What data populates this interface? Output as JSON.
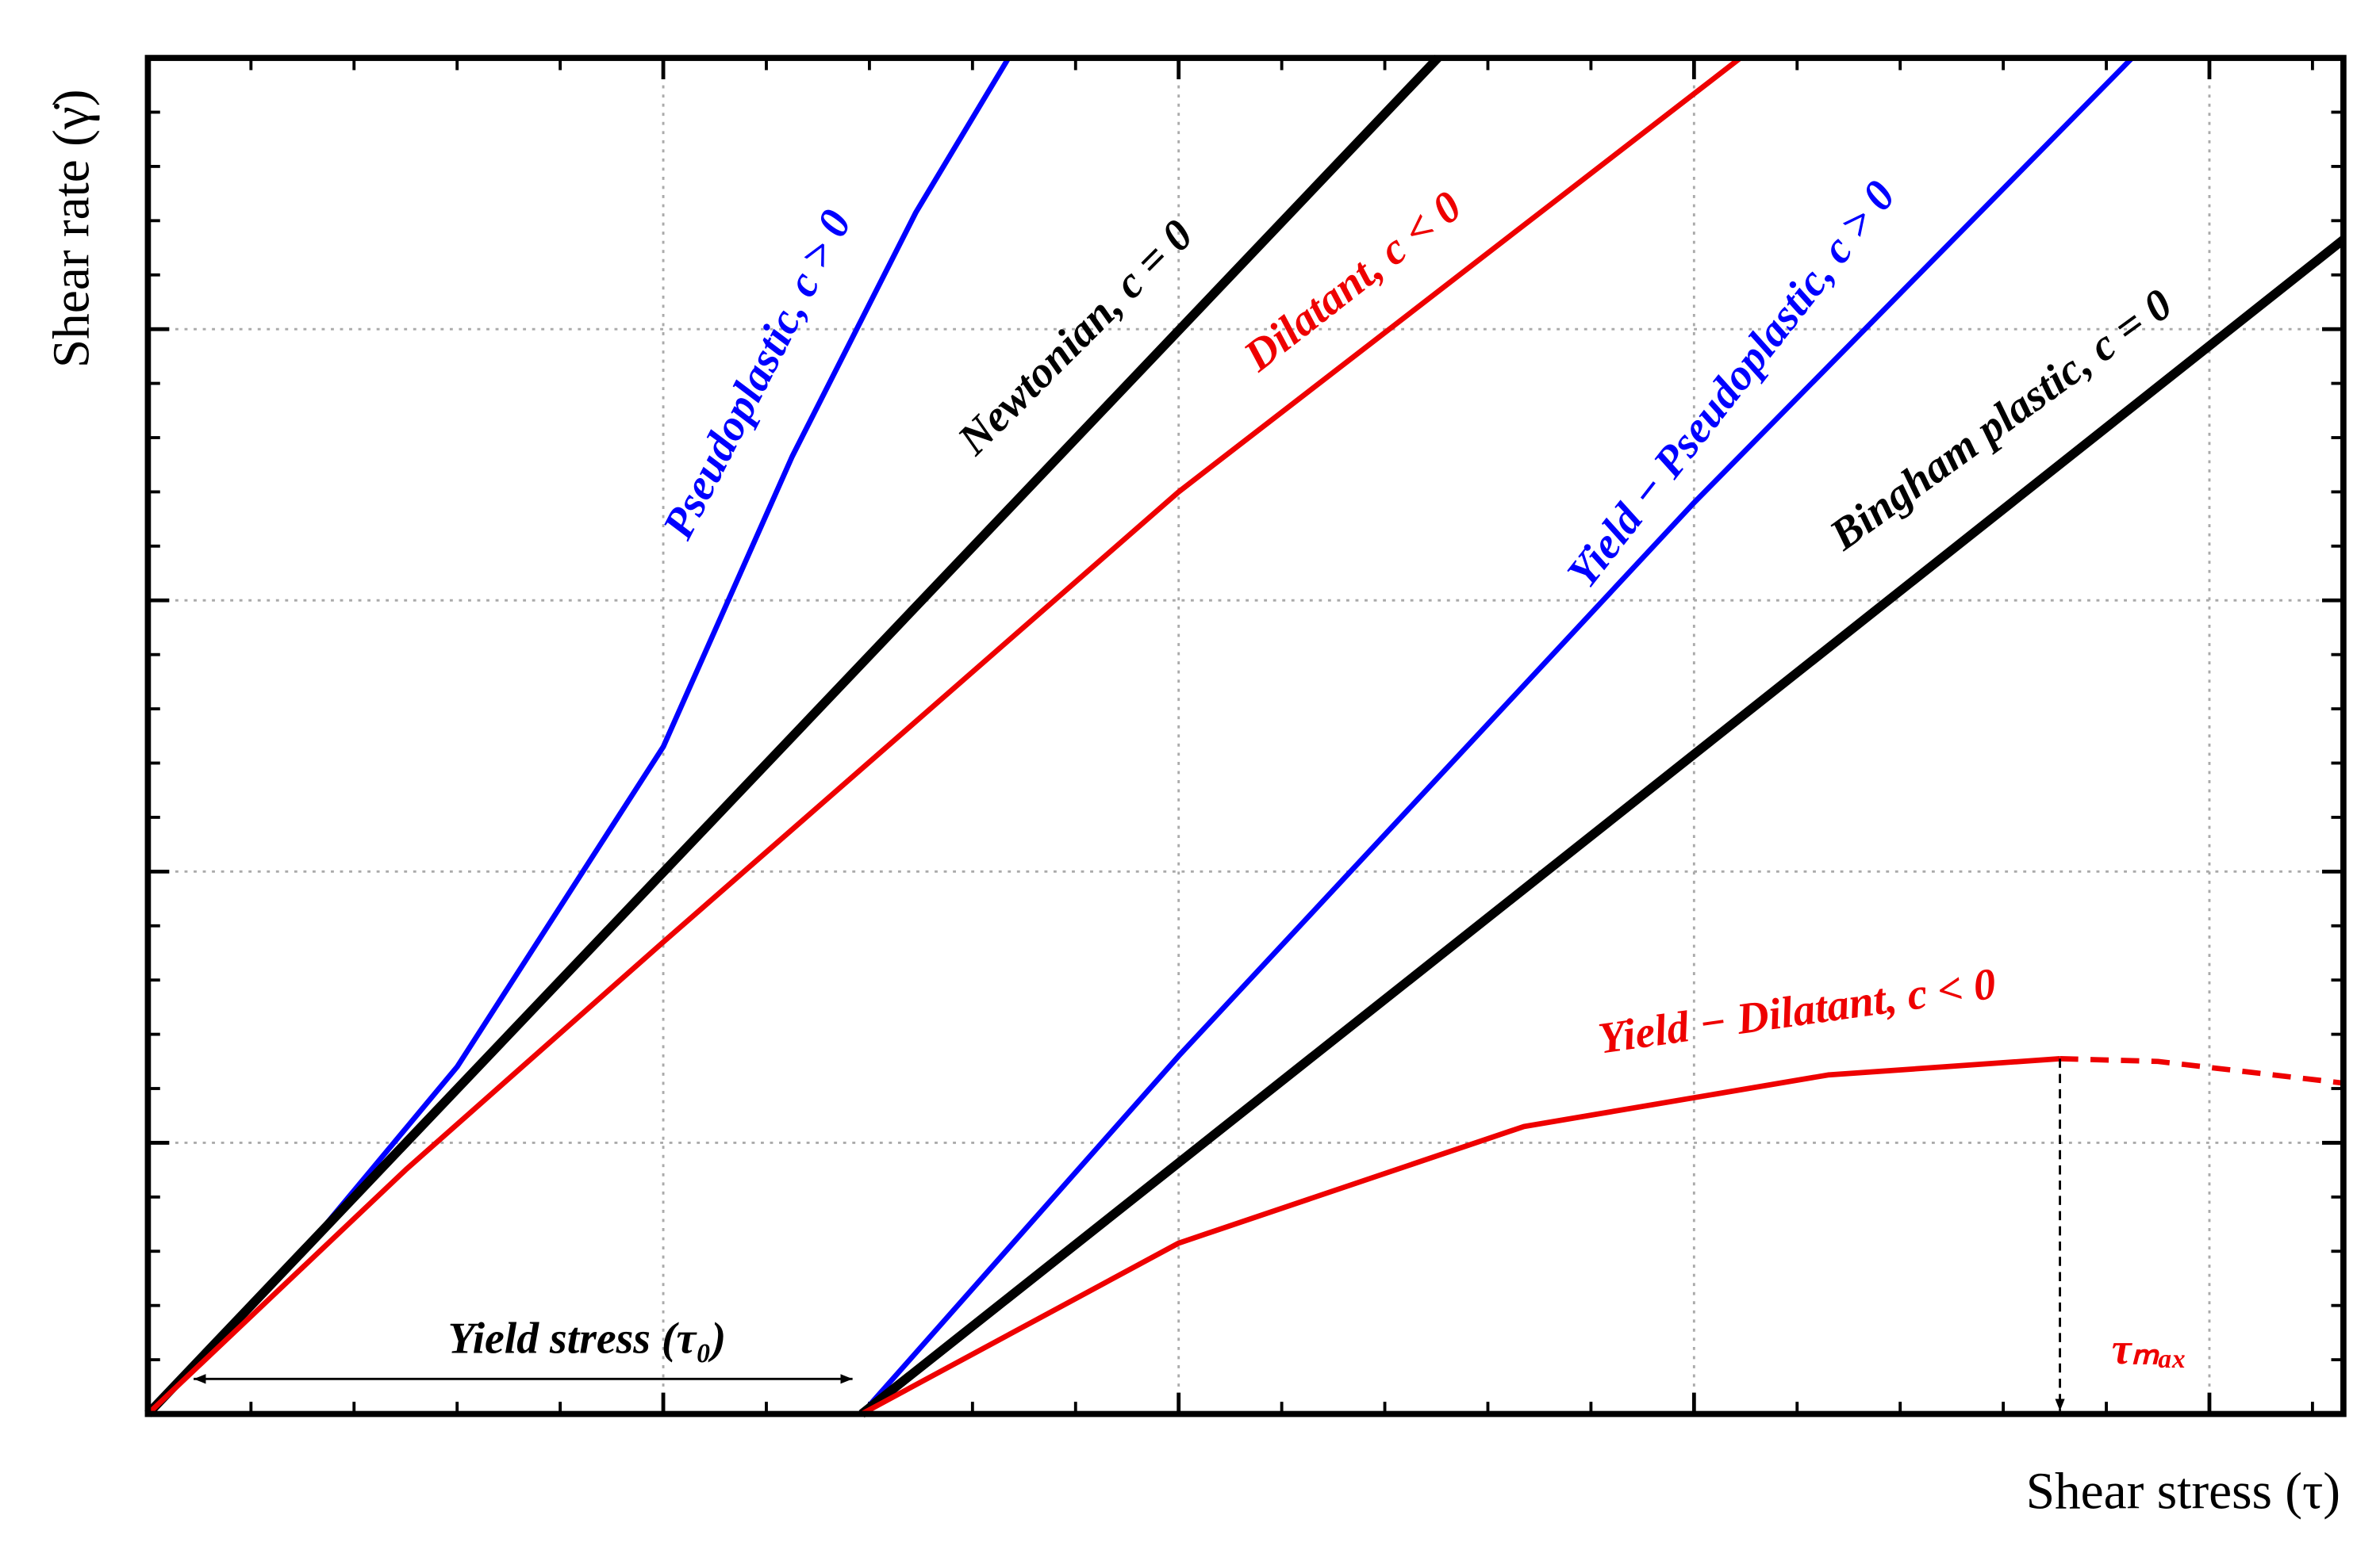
{
  "chart_data": {
    "type": "line",
    "x_label": "Shear stress (τ)",
    "y_label": "Shear rate (γ̇)",
    "xlim": [
      0,
      4.26
    ],
    "ylim": [
      0,
      5
    ],
    "xticks": [
      1,
      2,
      3,
      4
    ],
    "yticks": [
      1,
      2,
      3,
      4
    ],
    "grid": true,
    "series": [
      {
        "name": "Pseudoplastic, c > 0",
        "color": "#0000ff",
        "x": [
          0,
          0.305,
          0.6,
          1.0,
          1.25,
          1.49,
          1.67
        ],
        "values": [
          0,
          0.607,
          1.28,
          2.46,
          3.53,
          4.43,
          5.0
        ]
      },
      {
        "name": "Newtonian, c = 0",
        "color": "#000000",
        "x": [
          0,
          2.503
        ],
        "values": [
          0,
          5.0
        ]
      },
      {
        "name": "Dilatant, c < 0",
        "color": "#ee0000",
        "x": [
          0,
          0.5,
          1.0,
          2.0,
          3.09
        ],
        "values": [
          0,
          0.9,
          1.74,
          3.4,
          5.0
        ]
      },
      {
        "name": "Yield − Pseudoplastic, c > 0",
        "color": "#0000ff",
        "x": [
          1.385,
          2.0,
          3.0,
          3.85
        ],
        "values": [
          0,
          1.32,
          3.36,
          5.0
        ]
      },
      {
        "name": "Bingham plastic, c = 0",
        "color": "#000000",
        "x": [
          1.385,
          4.26
        ],
        "values": [
          0,
          4.33
        ]
      },
      {
        "name": "Yield − Dilatant, c < 0",
        "color": "#ee0000",
        "x": [
          1.385,
          2.0,
          2.67,
          3.26,
          3.71
        ],
        "values": [
          0,
          0.63,
          1.06,
          1.25,
          1.31
        ]
      },
      {
        "color": "#ee0000",
        "dashed": true,
        "x": [
          3.71,
          3.9,
          4.26
        ],
        "values": [
          1.31,
          1.3,
          1.22
        ]
      }
    ],
    "annotations": [
      {
        "text": "Yield stress (τ₀)",
        "x": [
          0,
          1.385
        ]
      },
      {
        "text": "τₘₐₓ",
        "x": 3.71
      }
    ]
  }
}
